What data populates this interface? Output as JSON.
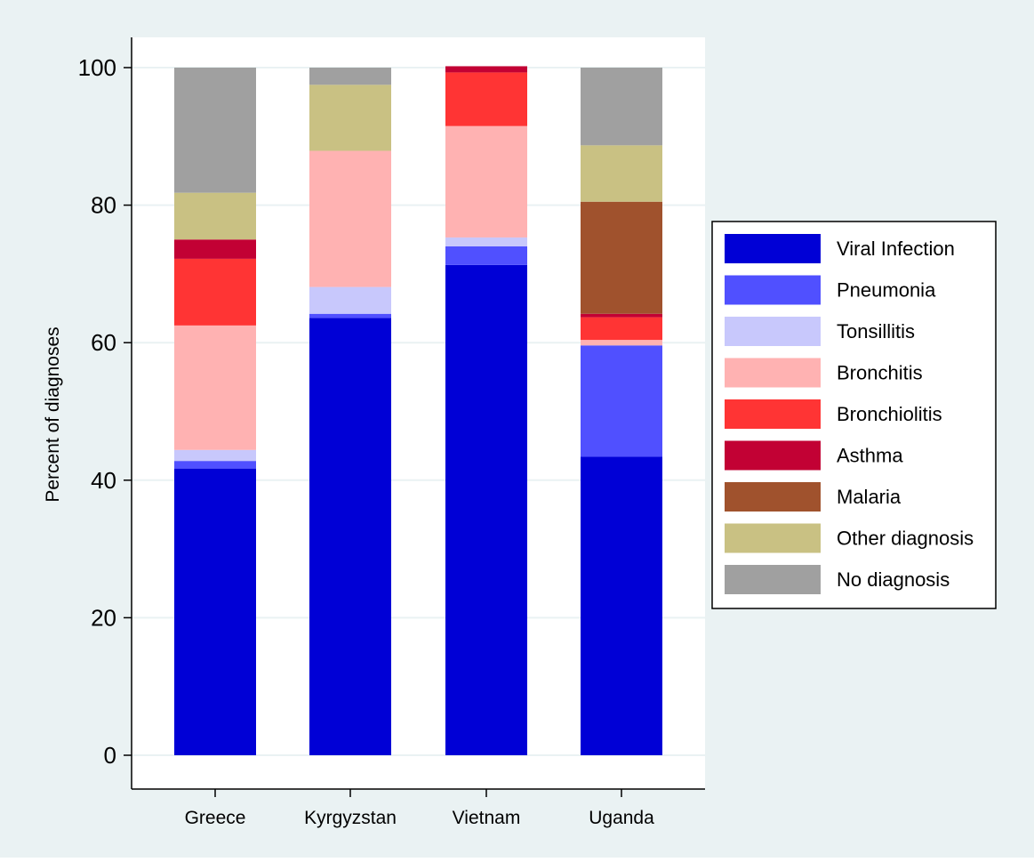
{
  "chart_data": {
    "type": "bar",
    "stacked": true,
    "categories": [
      "Greece",
      "Kyrgyzstan",
      "Vietnam",
      "Uganda"
    ],
    "ylabel": "Percent of diagnoses",
    "xlabel": "",
    "ylim": [
      0,
      100
    ],
    "yticks": [
      0,
      20,
      40,
      60,
      80,
      100
    ],
    "legend_position": "right",
    "grid": true,
    "series": [
      {
        "name": "Viral Infection",
        "color": "#0000d6",
        "values": [
          41.7,
          63.6,
          71.3,
          43.4
        ]
      },
      {
        "name": "Pneumonia",
        "color": "#5050ff",
        "values": [
          1.1,
          0.6,
          2.7,
          16.2
        ]
      },
      {
        "name": "Tonsillitis",
        "color": "#c8c8fc",
        "values": [
          1.6,
          3.9,
          1.3,
          0.0
        ]
      },
      {
        "name": "Bronchitis",
        "color": "#ffb2b2",
        "values": [
          18.1,
          19.8,
          16.2,
          0.8
        ]
      },
      {
        "name": "Bronchiolitis",
        "color": "#ff3434",
        "values": [
          9.7,
          0.0,
          7.8,
          3.3
        ]
      },
      {
        "name": "Asthma",
        "color": "#c20134",
        "values": [
          2.8,
          0.0,
          0.9,
          0.5
        ]
      },
      {
        "name": "Malaria",
        "color": "#a0522d",
        "values": [
          0.0,
          0.0,
          0.0,
          16.3
        ]
      },
      {
        "name": "Other diagnosis",
        "color": "#c9c183",
        "values": [
          6.8,
          9.6,
          0.0,
          8.2
        ]
      },
      {
        "name": "No diagnosis",
        "color": "#a0a0a0",
        "values": [
          18.2,
          2.5,
          0.0,
          11.3
        ]
      }
    ]
  },
  "colors": {
    "outer_background": "#eaf2f3",
    "plot_background": "#ffffff",
    "grid": "#eaf2f3",
    "axis": "#000000"
  }
}
